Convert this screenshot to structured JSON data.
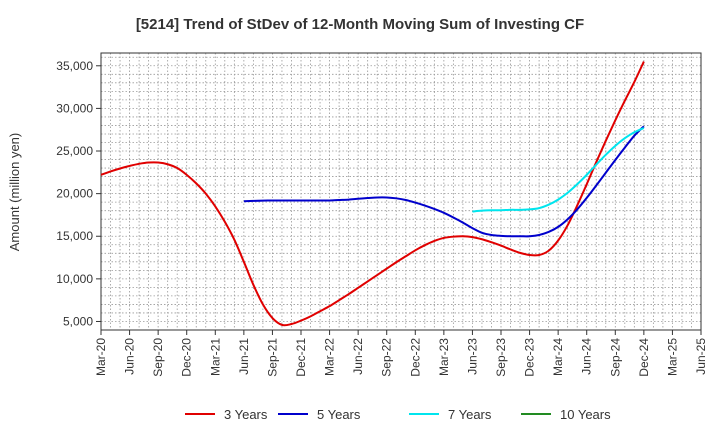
{
  "chart_data": {
    "type": "line",
    "title": "[5214]  Trend of StDev of 12-Month Moving Sum of Investing CF",
    "xlabel": "",
    "ylabel": "Amount (million yen)",
    "ylim": [
      4000,
      36500
    ],
    "yticks": [
      5000,
      10000,
      15000,
      20000,
      25000,
      30000,
      35000
    ],
    "ytick_labels": [
      "5,000",
      "10,000",
      "15,000",
      "20,000",
      "25,000",
      "30,000",
      "35,000"
    ],
    "x_categories": [
      "Mar-20",
      "Jun-20",
      "Sep-20",
      "Dec-20",
      "Mar-21",
      "Jun-21",
      "Sep-21",
      "Dec-21",
      "Mar-22",
      "Jun-22",
      "Sep-22",
      "Dec-22",
      "Mar-23",
      "Jun-23",
      "Sep-23",
      "Dec-23",
      "Mar-24",
      "Jun-24",
      "Sep-24",
      "Dec-24",
      "Mar-25",
      "Jun-25"
    ],
    "grid": true,
    "legend_position": "bottom",
    "series": [
      {
        "name": "3 Years",
        "color": "#e00000",
        "points": [
          [
            "Mar-20",
            22200
          ],
          [
            "Apr-20",
            22600
          ],
          [
            "May-20",
            22950
          ],
          [
            "Jun-20",
            23250
          ],
          [
            "Jul-20",
            23500
          ],
          [
            "Aug-20",
            23650
          ],
          [
            "Sep-20",
            23650
          ],
          [
            "Oct-20",
            23450
          ],
          [
            "Nov-20",
            23000
          ],
          [
            "Dec-20",
            22200
          ],
          [
            "Jan-21",
            21200
          ],
          [
            "Feb-21",
            20000
          ],
          [
            "Mar-21",
            18500
          ],
          [
            "Apr-21",
            16700
          ],
          [
            "May-21",
            14600
          ],
          [
            "Jun-21",
            12000
          ],
          [
            "Jul-21",
            9300
          ],
          [
            "Aug-21",
            7000
          ],
          [
            "Sep-21",
            5400
          ],
          [
            "Oct-21",
            4600
          ],
          [
            "Nov-21",
            4700
          ],
          [
            "Dec-21",
            5100
          ],
          [
            "Jan-22",
            5600
          ],
          [
            "Feb-22",
            6200
          ],
          [
            "Mar-22",
            6800
          ],
          [
            "Apr-22",
            7500
          ],
          [
            "May-22",
            8200
          ],
          [
            "Jun-22",
            8950
          ],
          [
            "Jul-22",
            9700
          ],
          [
            "Aug-22",
            10450
          ],
          [
            "Sep-22",
            11200
          ],
          [
            "Oct-22",
            11950
          ],
          [
            "Nov-22",
            12650
          ],
          [
            "Dec-22",
            13350
          ],
          [
            "Jan-23",
            13950
          ],
          [
            "Feb-23",
            14450
          ],
          [
            "Mar-23",
            14800
          ],
          [
            "Apr-23",
            14950
          ],
          [
            "May-23",
            15000
          ],
          [
            "Jun-23",
            14900
          ],
          [
            "Jul-23",
            14650
          ],
          [
            "Aug-23",
            14300
          ],
          [
            "Sep-23",
            13900
          ],
          [
            "Oct-23",
            13450
          ],
          [
            "Nov-23",
            13050
          ],
          [
            "Dec-23",
            12800
          ],
          [
            "Jan-24",
            12800
          ],
          [
            "Feb-24",
            13300
          ],
          [
            "Mar-24",
            14500
          ],
          [
            "Apr-24",
            16300
          ],
          [
            "May-24",
            18600
          ],
          [
            "Jun-24",
            21100
          ],
          [
            "Jul-24",
            23700
          ],
          [
            "Aug-24",
            26200
          ],
          [
            "Sep-24",
            28600
          ],
          [
            "Oct-24",
            30900
          ],
          [
            "Nov-24",
            33100
          ],
          [
            "Dec-24",
            35500
          ]
        ]
      },
      {
        "name": "5 Years",
        "color": "#0000cc",
        "points": [
          [
            "Jun-21",
            19100
          ],
          [
            "Jul-21",
            19150
          ],
          [
            "Aug-21",
            19180
          ],
          [
            "Sep-21",
            19200
          ],
          [
            "Oct-21",
            19200
          ],
          [
            "Nov-21",
            19200
          ],
          [
            "Dec-21",
            19200
          ],
          [
            "Jan-22",
            19200
          ],
          [
            "Feb-22",
            19200
          ],
          [
            "Mar-22",
            19200
          ],
          [
            "Apr-22",
            19250
          ],
          [
            "May-22",
            19300
          ],
          [
            "Jun-22",
            19400
          ],
          [
            "Jul-22",
            19480
          ],
          [
            "Aug-22",
            19550
          ],
          [
            "Sep-22",
            19550
          ],
          [
            "Oct-22",
            19450
          ],
          [
            "Nov-22",
            19250
          ],
          [
            "Dec-22",
            18950
          ],
          [
            "Jan-23",
            18600
          ],
          [
            "Feb-23",
            18200
          ],
          [
            "Mar-23",
            17750
          ],
          [
            "Apr-23",
            17200
          ],
          [
            "May-23",
            16600
          ],
          [
            "Jun-23",
            15950
          ],
          [
            "Jul-23",
            15400
          ],
          [
            "Aug-23",
            15150
          ],
          [
            "Sep-23",
            15050
          ],
          [
            "Oct-23",
            15000
          ],
          [
            "Nov-23",
            15000
          ],
          [
            "Dec-23",
            15000
          ],
          [
            "Jan-24",
            15150
          ],
          [
            "Feb-24",
            15500
          ],
          [
            "Mar-24",
            16100
          ],
          [
            "Apr-24",
            17000
          ],
          [
            "May-24",
            18150
          ],
          [
            "Jun-24",
            19500
          ],
          [
            "Jul-24",
            20950
          ],
          [
            "Aug-24",
            22450
          ],
          [
            "Sep-24",
            23950
          ],
          [
            "Oct-24",
            25400
          ],
          [
            "Nov-24",
            26800
          ],
          [
            "Dec-24",
            27900
          ]
        ]
      },
      {
        "name": "7 Years",
        "color": "#00e5ee",
        "points": [
          [
            "Jun-23",
            17900
          ],
          [
            "Jul-23",
            18000
          ],
          [
            "Aug-23",
            18050
          ],
          [
            "Sep-23",
            18050
          ],
          [
            "Oct-23",
            18100
          ],
          [
            "Nov-23",
            18100
          ],
          [
            "Dec-23",
            18150
          ],
          [
            "Jan-24",
            18300
          ],
          [
            "Feb-24",
            18700
          ],
          [
            "Mar-24",
            19300
          ],
          [
            "Apr-24",
            20100
          ],
          [
            "May-24",
            21100
          ],
          [
            "Jun-24",
            22200
          ],
          [
            "Jul-24",
            23400
          ],
          [
            "Aug-24",
            24550
          ],
          [
            "Sep-24",
            25600
          ],
          [
            "Oct-24",
            26500
          ],
          [
            "Nov-24",
            27200
          ],
          [
            "Dec-24",
            27700
          ]
        ]
      },
      {
        "name": "10 Years",
        "color": "#228b22",
        "points": []
      }
    ]
  }
}
